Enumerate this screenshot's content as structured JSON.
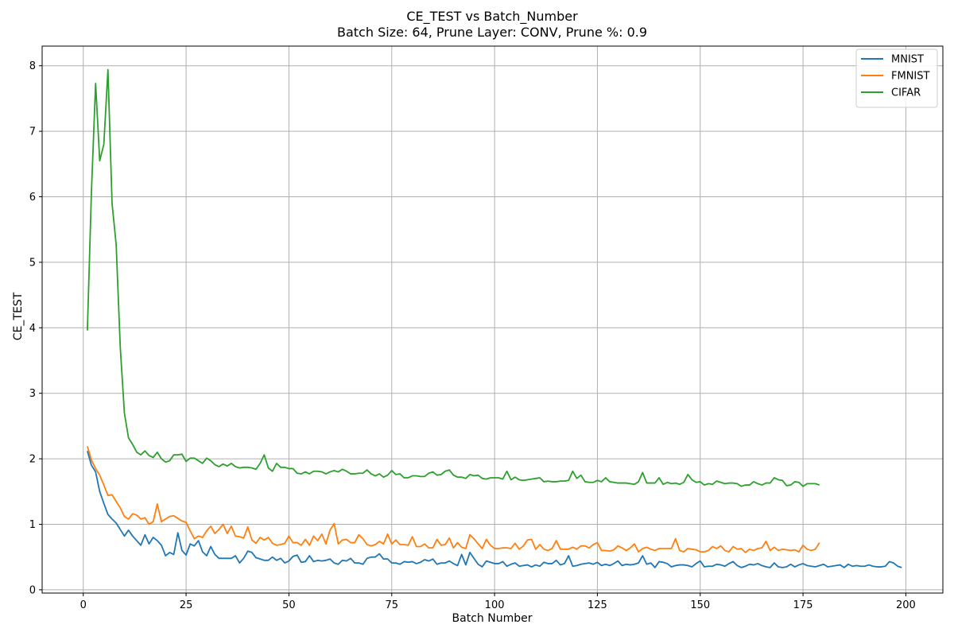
{
  "chart_data": {
    "type": "line",
    "title": "CE_TEST vs Batch_Number",
    "subtitle": "Batch Size: 64, Prune Layer: CONV, Prune %: 0.9",
    "xlabel": "Batch Number",
    "ylabel": "CE_TEST",
    "xlim": [
      -10,
      209
    ],
    "ylim": [
      -0.05,
      8.3
    ],
    "xticks": [
      0,
      25,
      50,
      75,
      100,
      125,
      150,
      175,
      200
    ],
    "yticks": [
      0,
      1,
      2,
      3,
      4,
      5,
      6,
      7,
      8
    ],
    "grid": true,
    "legend_position": "top-right",
    "series": [
      {
        "name": "MNIST",
        "color": "#1f77b4",
        "x": [
          1,
          2,
          3,
          4,
          5,
          6,
          7,
          8,
          9,
          10,
          11,
          12,
          13,
          14,
          15,
          16,
          17,
          18,
          19,
          20,
          21,
          22,
          23,
          24,
          25,
          26,
          27,
          28,
          29,
          30,
          31,
          32,
          33,
          34,
          35,
          36,
          37,
          38,
          39,
          40,
          41,
          42,
          43,
          44,
          45,
          46,
          47,
          48,
          49,
          50,
          51,
          52,
          53,
          54,
          55,
          56,
          57,
          58,
          59,
          60,
          61,
          62,
          63,
          64,
          65,
          66,
          67,
          68,
          69,
          70,
          71,
          72,
          73,
          74,
          75,
          76,
          77,
          78,
          79,
          80,
          81,
          82,
          83,
          84,
          85,
          86,
          87,
          88,
          89,
          90,
          91,
          92,
          93,
          94,
          95,
          96,
          97,
          98,
          99,
          100,
          101,
          102,
          103,
          104,
          105,
          106,
          107,
          108,
          109,
          110,
          111,
          112,
          113,
          114,
          115,
          116,
          117,
          118,
          119,
          120,
          121,
          122,
          123,
          124,
          125,
          126,
          127,
          128,
          129,
          130,
          131,
          132,
          133,
          134,
          135,
          136,
          137,
          138,
          139,
          140,
          141,
          142,
          143,
          144,
          145,
          146,
          147,
          148,
          149,
          150,
          151,
          152,
          153,
          154,
          155,
          156,
          157,
          158,
          159,
          160,
          161,
          162,
          163,
          164,
          165,
          166,
          167,
          168,
          169,
          170,
          171,
          172,
          173,
          174,
          175,
          176,
          177,
          178,
          179,
          180,
          181,
          182,
          183,
          184,
          185,
          186,
          187,
          188,
          189,
          190,
          191,
          192,
          193,
          194,
          195,
          196,
          197,
          198,
          199
        ],
        "y": [
          2.12,
          1.9,
          1.8,
          1.5,
          1.32,
          1.15,
          1.08,
          1.02,
          0.92,
          0.82,
          0.91,
          0.82,
          0.75,
          0.68,
          0.84,
          0.7,
          0.8,
          0.75,
          0.68,
          0.52,
          0.57,
          0.54,
          0.87,
          0.6,
          0.53,
          0.7,
          0.67,
          0.75,
          0.58,
          0.52,
          0.66,
          0.54,
          0.48,
          0.48,
          0.48,
          0.48,
          0.52,
          0.41,
          0.48,
          0.59,
          0.57,
          0.49,
          0.47,
          0.45,
          0.45,
          0.5,
          0.45,
          0.48,
          0.41,
          0.44,
          0.51,
          0.53,
          0.42,
          0.43,
          0.52,
          0.43,
          0.45,
          0.44,
          0.45,
          0.47,
          0.41,
          0.39,
          0.45,
          0.44,
          0.48,
          0.41,
          0.41,
          0.39,
          0.48,
          0.5,
          0.5,
          0.55,
          0.47,
          0.47,
          0.41,
          0.41,
          0.39,
          0.43,
          0.42,
          0.43,
          0.4,
          0.42,
          0.46,
          0.44,
          0.47,
          0.39,
          0.41,
          0.41,
          0.44,
          0.4,
          0.37,
          0.54,
          0.38,
          0.57,
          0.48,
          0.39,
          0.35,
          0.44,
          0.42,
          0.4,
          0.4,
          0.43,
          0.36,
          0.39,
          0.41,
          0.36,
          0.37,
          0.38,
          0.35,
          0.38,
          0.36,
          0.42,
          0.4,
          0.4,
          0.45,
          0.38,
          0.4,
          0.52,
          0.36,
          0.37,
          0.39,
          0.4,
          0.41,
          0.39,
          0.42,
          0.37,
          0.39,
          0.37,
          0.4,
          0.44,
          0.37,
          0.39,
          0.38,
          0.39,
          0.41,
          0.52,
          0.39,
          0.41,
          0.34,
          0.43,
          0.42,
          0.4,
          0.35,
          0.37,
          0.38,
          0.38,
          0.37,
          0.35,
          0.4,
          0.44,
          0.35,
          0.36,
          0.36,
          0.39,
          0.38,
          0.36,
          0.4,
          0.43,
          0.37,
          0.34,
          0.36,
          0.39,
          0.38,
          0.4,
          0.37,
          0.35,
          0.34,
          0.41,
          0.35,
          0.34,
          0.35,
          0.39,
          0.35,
          0.38,
          0.4,
          0.37,
          0.36,
          0.35,
          0.37,
          0.39,
          0.35,
          0.36,
          0.37,
          0.38,
          0.34,
          0.39,
          0.36,
          0.37,
          0.36,
          0.36,
          0.38,
          0.36,
          0.35,
          0.35,
          0.36,
          0.43,
          0.41,
          0.36,
          0.34
        ]
      },
      {
        "name": "FMNIST",
        "color": "#ff7f0e",
        "x": [
          1,
          2,
          3,
          4,
          5,
          6,
          7,
          8,
          9,
          10,
          11,
          12,
          13,
          14,
          15,
          16,
          17,
          18,
          19,
          20,
          21,
          22,
          23,
          24,
          25,
          26,
          27,
          28,
          29,
          30,
          31,
          32,
          33,
          34,
          35,
          36,
          37,
          38,
          39,
          40,
          41,
          42,
          43,
          44,
          45,
          46,
          47,
          48,
          49,
          50,
          51,
          52,
          53,
          54,
          55,
          56,
          57,
          58,
          59,
          60,
          61,
          62,
          63,
          64,
          65,
          66,
          67,
          68,
          69,
          70,
          71,
          72,
          73,
          74,
          75,
          76,
          77,
          78,
          79,
          80,
          81,
          82,
          83,
          84,
          85,
          86,
          87,
          88,
          89,
          90,
          91,
          92,
          93,
          94,
          95,
          96,
          97,
          98,
          99,
          100,
          101,
          102,
          103,
          104,
          105,
          106,
          107,
          108,
          109,
          110,
          111,
          112,
          113,
          114,
          115,
          116,
          117,
          118,
          119,
          120,
          121,
          122,
          123,
          124,
          125,
          126,
          127,
          128,
          129,
          130,
          131,
          132,
          133,
          134,
          135,
          136,
          137,
          138,
          139,
          140,
          141,
          142,
          143,
          144,
          145,
          146,
          147,
          148,
          149,
          150,
          151,
          152,
          153,
          154,
          155,
          156,
          157,
          158,
          159,
          160,
          161,
          162,
          163,
          164,
          165,
          166,
          167,
          168,
          169,
          170,
          171,
          172,
          173,
          174,
          175,
          176,
          177,
          178,
          179
        ],
        "y": [
          2.19,
          1.98,
          1.85,
          1.75,
          1.6,
          1.44,
          1.45,
          1.35,
          1.25,
          1.12,
          1.08,
          1.16,
          1.14,
          1.08,
          1.1,
          1,
          1.04,
          1.31,
          1.04,
          1.08,
          1.12,
          1.13,
          1.09,
          1.05,
          1.03,
          0.9,
          0.78,
          0.82,
          0.8,
          0.9,
          0.97,
          0.86,
          0.92,
          1.0,
          0.86,
          0.97,
          0.82,
          0.81,
          0.79,
          0.96,
          0.76,
          0.71,
          0.8,
          0.76,
          0.8,
          0.71,
          0.68,
          0.69,
          0.71,
          0.82,
          0.72,
          0.72,
          0.68,
          0.77,
          0.68,
          0.82,
          0.75,
          0.85,
          0.7,
          0.91,
          1.01,
          0.7,
          0.76,
          0.77,
          0.72,
          0.72,
          0.84,
          0.78,
          0.69,
          0.67,
          0.69,
          0.74,
          0.7,
          0.85,
          0.7,
          0.76,
          0.69,
          0.69,
          0.68,
          0.81,
          0.66,
          0.66,
          0.7,
          0.64,
          0.64,
          0.77,
          0.68,
          0.69,
          0.79,
          0.64,
          0.72,
          0.65,
          0.63,
          0.84,
          0.78,
          0.7,
          0.63,
          0.77,
          0.68,
          0.63,
          0.63,
          0.64,
          0.64,
          0.63,
          0.71,
          0.62,
          0.67,
          0.76,
          0.77,
          0.62,
          0.69,
          0.62,
          0.6,
          0.63,
          0.75,
          0.62,
          0.62,
          0.62,
          0.65,
          0.62,
          0.67,
          0.67,
          0.64,
          0.69,
          0.72,
          0.6,
          0.6,
          0.59,
          0.61,
          0.67,
          0.64,
          0.6,
          0.64,
          0.7,
          0.58,
          0.63,
          0.65,
          0.62,
          0.6,
          0.63,
          0.63,
          0.63,
          0.63,
          0.78,
          0.6,
          0.58,
          0.63,
          0.62,
          0.61,
          0.58,
          0.58,
          0.6,
          0.66,
          0.63,
          0.67,
          0.6,
          0.58,
          0.66,
          0.62,
          0.63,
          0.57,
          0.62,
          0.6,
          0.63,
          0.64,
          0.74,
          0.6,
          0.65,
          0.6,
          0.62,
          0.61,
          0.6,
          0.61,
          0.58,
          0.68,
          0.62,
          0.6,
          0.62,
          0.72
        ]
      },
      {
        "name": "CIFAR",
        "color": "#2ca02c",
        "x": [
          1,
          2,
          3,
          4,
          5,
          6,
          7,
          8,
          9,
          10,
          11,
          12,
          13,
          14,
          15,
          16,
          17,
          18,
          19,
          20,
          21,
          22,
          23,
          24,
          25,
          26,
          27,
          28,
          29,
          30,
          31,
          32,
          33,
          34,
          35,
          36,
          37,
          38,
          39,
          40,
          41,
          42,
          43,
          44,
          45,
          46,
          47,
          48,
          49,
          50,
          51,
          52,
          53,
          54,
          55,
          56,
          57,
          58,
          59,
          60,
          61,
          62,
          63,
          64,
          65,
          66,
          67,
          68,
          69,
          70,
          71,
          72,
          73,
          74,
          75,
          76,
          77,
          78,
          79,
          80,
          81,
          82,
          83,
          84,
          85,
          86,
          87,
          88,
          89,
          90,
          91,
          92,
          93,
          94,
          95,
          96,
          97,
          98,
          99,
          100,
          101,
          102,
          103,
          104,
          105,
          106,
          107,
          108,
          109,
          110,
          111,
          112,
          113,
          114,
          115,
          116,
          117,
          118,
          119,
          120,
          121,
          122,
          123,
          124,
          125,
          126,
          127,
          128,
          129,
          130,
          131,
          132,
          133,
          134,
          135,
          136,
          137,
          138,
          139,
          140,
          141,
          142,
          143,
          144,
          145,
          146,
          147,
          148,
          149,
          150,
          151,
          152,
          153,
          154,
          155,
          156,
          157,
          158,
          159,
          160,
          161,
          162,
          163,
          164,
          165,
          166,
          167,
          168,
          169,
          170,
          171,
          172,
          173,
          174,
          175,
          176,
          177,
          178,
          179
        ],
        "y": [
          3.96,
          6.1,
          7.73,
          6.55,
          6.8,
          7.94,
          5.9,
          5.27,
          3.7,
          2.7,
          2.32,
          2.22,
          2.1,
          2.06,
          2.12,
          2.05,
          2.02,
          2.1,
          2,
          1.95,
          1.97,
          2.06,
          2.06,
          2.07,
          1.96,
          2.01,
          2.01,
          1.97,
          1.93,
          2.01,
          1.97,
          1.91,
          1.88,
          1.92,
          1.89,
          1.93,
          1.88,
          1.86,
          1.87,
          1.87,
          1.86,
          1.84,
          1.93,
          2.06,
          1.86,
          1.81,
          1.93,
          1.87,
          1.87,
          1.85,
          1.85,
          1.78,
          1.77,
          1.8,
          1.77,
          1.81,
          1.81,
          1.8,
          1.77,
          1.8,
          1.82,
          1.8,
          1.84,
          1.81,
          1.77,
          1.77,
          1.78,
          1.78,
          1.83,
          1.77,
          1.74,
          1.77,
          1.72,
          1.75,
          1.82,
          1.76,
          1.77,
          1.71,
          1.71,
          1.74,
          1.74,
          1.73,
          1.73,
          1.78,
          1.8,
          1.75,
          1.76,
          1.81,
          1.83,
          1.75,
          1.72,
          1.72,
          1.7,
          1.76,
          1.74,
          1.75,
          1.7,
          1.69,
          1.71,
          1.71,
          1.71,
          1.69,
          1.81,
          1.68,
          1.72,
          1.68,
          1.67,
          1.68,
          1.69,
          1.7,
          1.71,
          1.65,
          1.66,
          1.65,
          1.65,
          1.66,
          1.66,
          1.67,
          1.81,
          1.7,
          1.75,
          1.65,
          1.64,
          1.64,
          1.67,
          1.65,
          1.71,
          1.65,
          1.64,
          1.63,
          1.63,
          1.63,
          1.62,
          1.61,
          1.65,
          1.79,
          1.63,
          1.63,
          1.63,
          1.71,
          1.61,
          1.64,
          1.62,
          1.63,
          1.61,
          1.64,
          1.76,
          1.68,
          1.64,
          1.65,
          1.6,
          1.62,
          1.61,
          1.66,
          1.64,
          1.62,
          1.63,
          1.63,
          1.62,
          1.58,
          1.6,
          1.6,
          1.65,
          1.62,
          1.6,
          1.63,
          1.63,
          1.71,
          1.68,
          1.67,
          1.59,
          1.6,
          1.65,
          1.64,
          1.58,
          1.62,
          1.62,
          1.62,
          1.6
        ]
      }
    ]
  }
}
